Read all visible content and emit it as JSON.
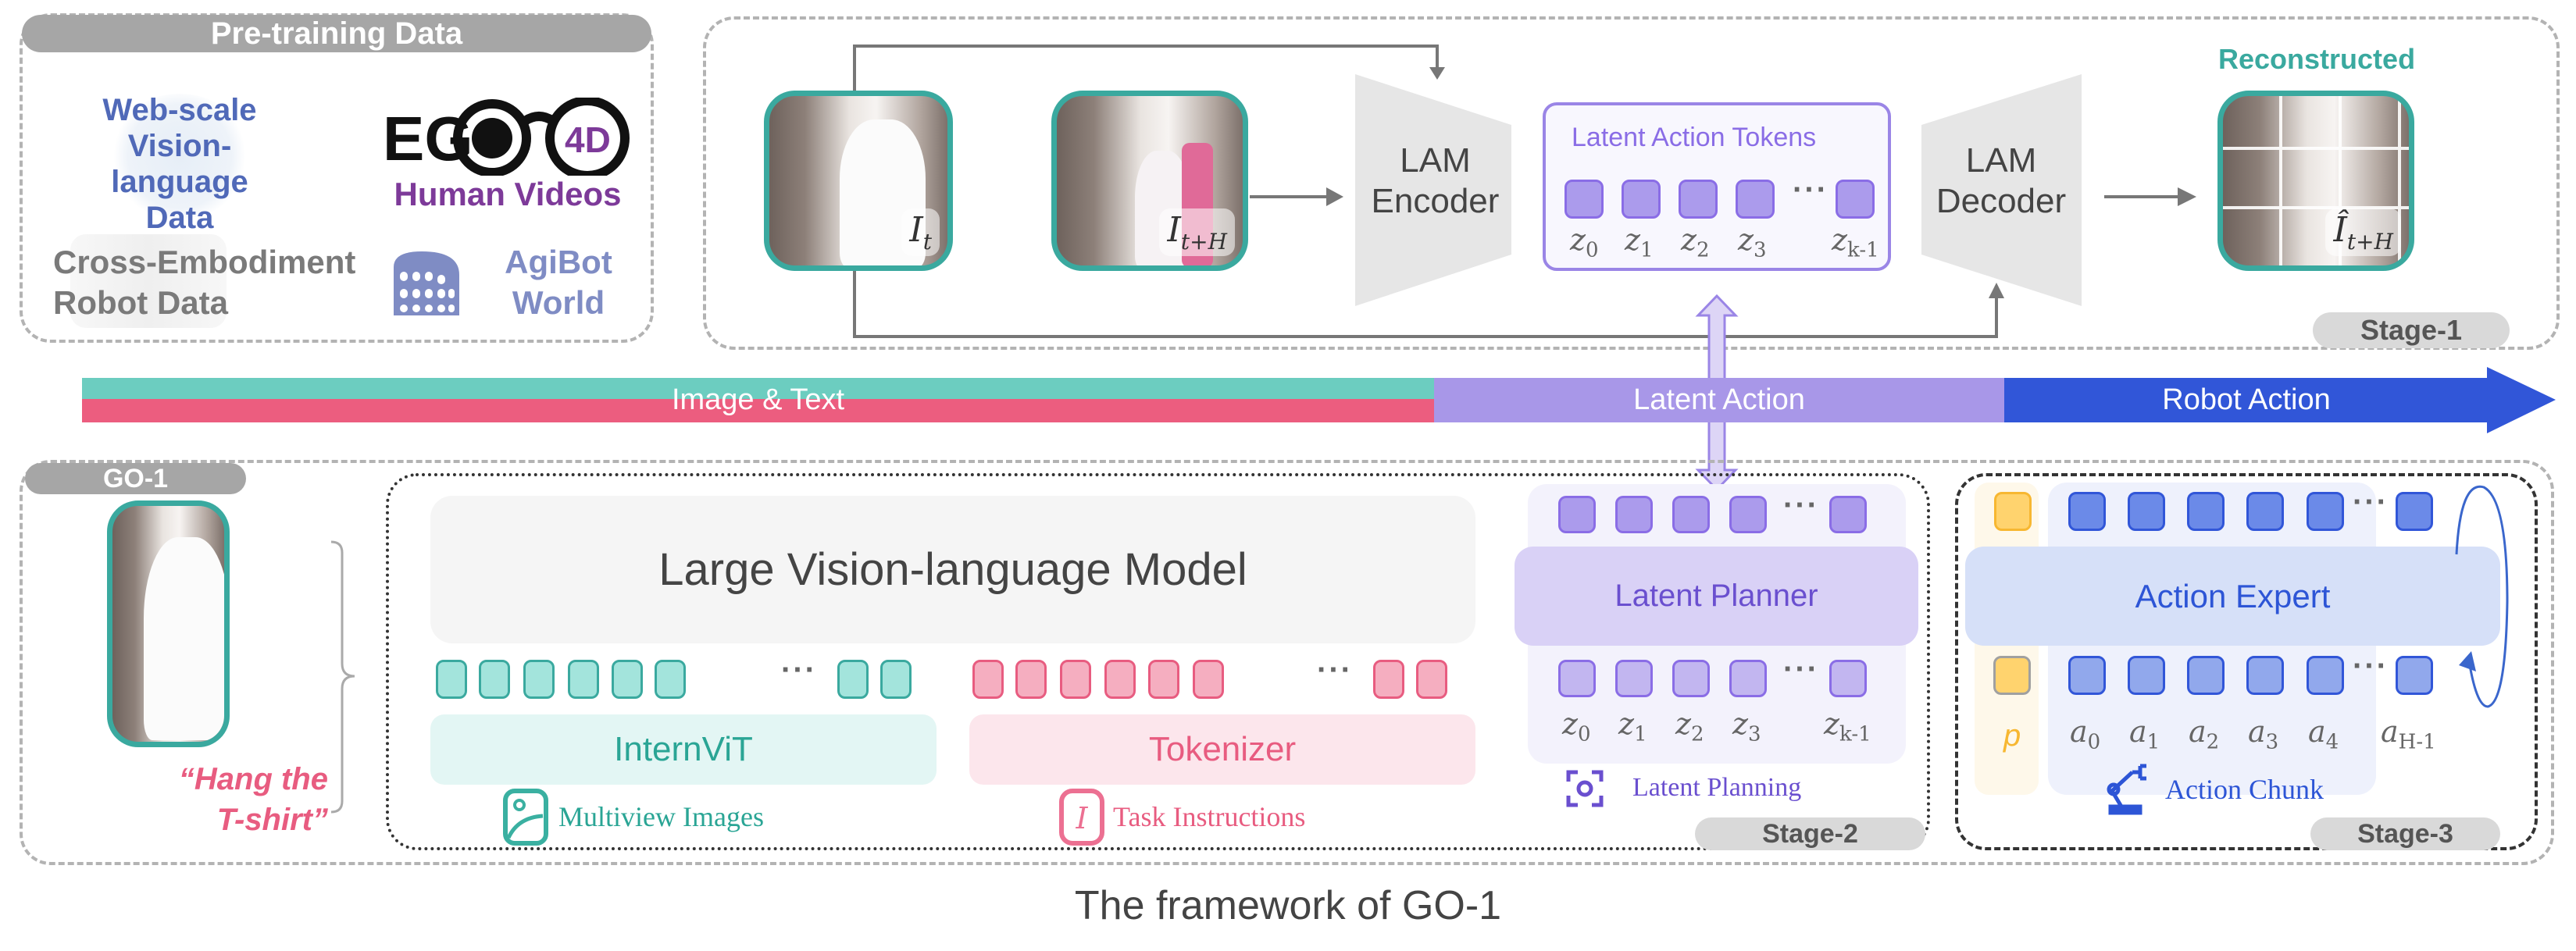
{
  "pretraining": {
    "title": "Pre-training Data",
    "web_scale": [
      "Web-scale",
      "Vision-language",
      "Data"
    ],
    "ego4d_logo": "EGO 4D",
    "human_videos": "Human Videos",
    "cross_embodiment": [
      "Cross-Embodiment",
      "Robot Data"
    ],
    "agibot": [
      "AgiBot",
      "World"
    ],
    "colors": {
      "web": "#5069b8",
      "human": "#7d3a99",
      "cross": "#7a7a7a",
      "agibot": "#7f8cc4"
    }
  },
  "stage1": {
    "image_t": {
      "base": "I",
      "sub": "t"
    },
    "image_tH": {
      "base": "I",
      "sub": "t+H"
    },
    "encoder": [
      "LAM",
      "Encoder"
    ],
    "decoder": [
      "LAM",
      "Decoder"
    ],
    "tokens_title": "Latent Action Tokens",
    "token_labels": [
      "z0",
      "z1",
      "z2",
      "z3",
      "zk-1"
    ],
    "reconstructed": "Reconstructed",
    "reconstructed_image": {
      "base": "Î",
      "sub": "t+H"
    },
    "stage_label": "Stage-1"
  },
  "bar": {
    "image_text": "Image & Text",
    "latent_action": "Latent Action",
    "robot_action": "Robot Action",
    "colors": {
      "teal": "#6ccdc0",
      "pink": "#ec5d7f",
      "purple": "#a897e8",
      "blue": "#3156d8"
    }
  },
  "go1": {
    "title": "GO-1",
    "instruction": [
      "“Hang the",
      "T-shirt”"
    ],
    "vlm": "Large Vision-language Model",
    "internvit": "InternViT",
    "tokenizer": "Tokenizer",
    "multiview": "Multiview Images",
    "task_instructions": "Task Instructions",
    "latent_planner": "Latent Planner",
    "latent_labels": [
      "z0",
      "z1",
      "z2",
      "z3",
      "zk-1"
    ],
    "latent_planning": "Latent Planning",
    "stage2": "Stage-2",
    "action_expert": "Action Expert",
    "proprio": "p",
    "action_labels": [
      "a0",
      "a1",
      "a2",
      "a3",
      "a4",
      "aH-1"
    ],
    "action_chunk": "Action Chunk",
    "stage3": "Stage-3"
  },
  "caption": "The framework of GO-1"
}
